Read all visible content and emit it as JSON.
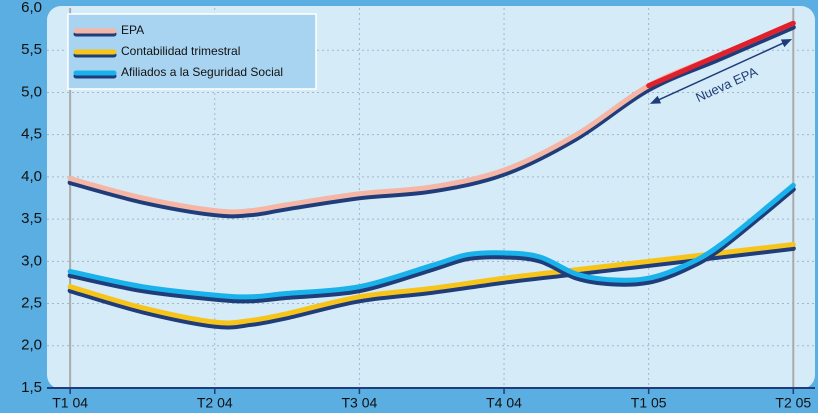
{
  "chart_data": {
    "type": "line",
    "xticks": [
      {
        "value": 0,
        "label": "T1 04"
      },
      {
        "value": 1,
        "label": "T2 04"
      },
      {
        "value": 2,
        "label": "T3 04"
      },
      {
        "value": 3,
        "label": "T4 04"
      },
      {
        "value": 4,
        "label": "T1 05"
      },
      {
        "value": 5,
        "label": "T2 05"
      }
    ],
    "xlim": [
      -0.16,
      5.15
    ],
    "ylim": [
      1.5,
      6.0
    ],
    "yticks": [
      {
        "value": 1.5,
        "label": "1,5"
      },
      {
        "value": 2.0,
        "label": "2,0"
      },
      {
        "value": 2.5,
        "label": "2,5"
      },
      {
        "value": 3.0,
        "label": "3,0"
      },
      {
        "value": 3.5,
        "label": "3,5"
      },
      {
        "value": 4.0,
        "label": "4,0"
      },
      {
        "value": 4.5,
        "label": "4,5"
      },
      {
        "value": 5.0,
        "label": "5,0"
      },
      {
        "value": 5.5,
        "label": "5,5"
      },
      {
        "value": 6.0,
        "label": "6,0"
      }
    ],
    "grid": true,
    "legend": "upper left",
    "series": [
      {
        "name": "EPA",
        "color": "#f6b6a6",
        "x": [
          0,
          0.5,
          1,
          1.25,
          1.5,
          2,
          2.5,
          3,
          3.5,
          4,
          4.5,
          5
        ],
        "values": [
          3.98,
          3.75,
          3.6,
          3.6,
          3.67,
          3.8,
          3.88,
          4.08,
          4.5,
          5.08,
          5.45,
          5.82
        ]
      },
      {
        "name": "Contabilidad trimestral",
        "color": "#f7c51a",
        "x": [
          0,
          0.5,
          1,
          1.25,
          1.5,
          2,
          2.5,
          3,
          3.5,
          4,
          4.5,
          5
        ],
        "values": [
          2.7,
          2.45,
          2.28,
          2.3,
          2.38,
          2.58,
          2.68,
          2.8,
          2.9,
          3.0,
          3.1,
          3.2
        ]
      },
      {
        "name": "Afiliados a la Seguridad Social",
        "color": "#1ab2ea",
        "x": [
          0,
          0.5,
          1,
          1.25,
          1.5,
          2,
          2.5,
          2.75,
          3,
          3.25,
          3.5,
          3.75,
          4,
          4.25,
          4.5,
          5
        ],
        "values": [
          2.88,
          2.7,
          2.6,
          2.58,
          2.62,
          2.7,
          2.95,
          3.08,
          3.1,
          3.05,
          2.85,
          2.78,
          2.8,
          2.95,
          3.2,
          3.9
        ]
      }
    ],
    "annotation": {
      "text": "Nueva EPA",
      "series": 0,
      "from_x": 4,
      "color": "#e0202c"
    }
  }
}
